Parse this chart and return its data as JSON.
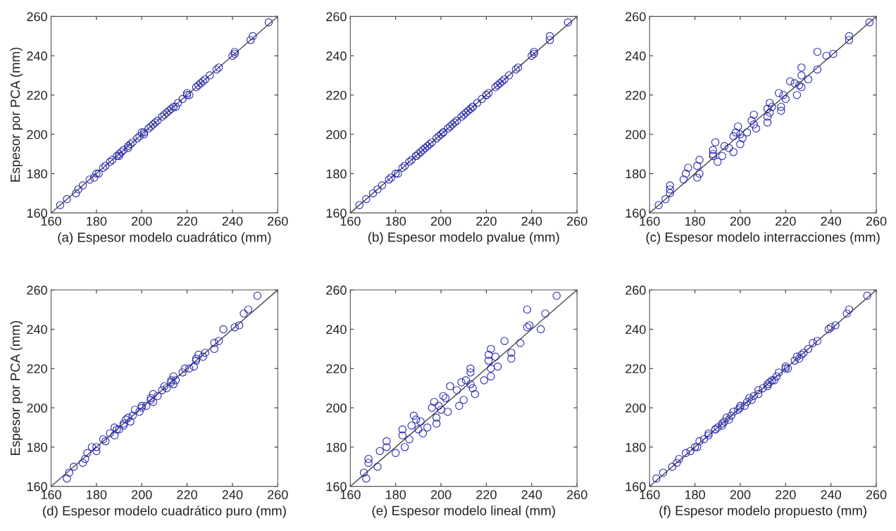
{
  "chart_data": [
    {
      "type": "scatter",
      "xlabel": "(a) Espesor modelo cuadrático (mm)",
      "ylabel": "Espesor por PCA (mm)",
      "xlim": [
        160,
        260
      ],
      "ylim": [
        160,
        260
      ],
      "xticks": [
        160,
        180,
        200,
        220,
        240,
        260
      ],
      "yticks": [
        160,
        180,
        200,
        220,
        240,
        260
      ],
      "grid": false,
      "series": [
        {
          "marker": "circle",
          "color": "#2b2bb0",
          "x": [
            164,
            167,
            171,
            172,
            174,
            177,
            179,
            180,
            181,
            183,
            184,
            186,
            187,
            189,
            190,
            190,
            191,
            192,
            194,
            194,
            195,
            196,
            198,
            199,
            201,
            201,
            200,
            203,
            204,
            205,
            206,
            207,
            209,
            210,
            211,
            212,
            213,
            214,
            215,
            216,
            218,
            220,
            221,
            220,
            224,
            225,
            226,
            227,
            228,
            230,
            233,
            234,
            240,
            241,
            241,
            248,
            249,
            256
          ],
          "values": [
            164,
            167,
            170,
            172,
            174,
            177,
            178,
            180,
            180,
            183,
            184,
            186,
            187,
            189,
            189,
            190,
            191,
            192,
            193,
            194,
            195,
            196,
            198,
            199,
            200,
            201,
            201,
            203,
            204,
            205,
            206,
            207,
            209,
            210,
            211,
            212,
            213,
            214,
            214,
            216,
            218,
            220,
            220,
            221,
            224,
            225,
            226,
            227,
            228,
            230,
            233,
            234,
            240,
            241,
            242,
            248,
            250,
            257
          ]
        },
        {
          "type": "line",
          "color": "#333333",
          "x": [
            160,
            260
          ],
          "values": [
            160,
            260
          ]
        }
      ]
    },
    {
      "type": "scatter",
      "xlabel": "(b) Espesor modelo pvalue (mm)",
      "xlim": [
        160,
        260
      ],
      "ylim": [
        160,
        260
      ],
      "xticks": [
        160,
        180,
        200,
        220,
        240,
        260
      ],
      "yticks": [
        160,
        180,
        200,
        220,
        240,
        260
      ],
      "grid": false,
      "series": [
        {
          "marker": "circle",
          "color": "#2b2bb0",
          "x": [
            164,
            167,
            170,
            172,
            174,
            177,
            178,
            180,
            181,
            183,
            184,
            186,
            187,
            189,
            189,
            190,
            191,
            192,
            193,
            194,
            195,
            196,
            198,
            199,
            200,
            201,
            201,
            203,
            204,
            205,
            206,
            207,
            209,
            210,
            211,
            212,
            213,
            214,
            214,
            216,
            218,
            220,
            220,
            221,
            224,
            225,
            226,
            227,
            228,
            230,
            233,
            234,
            240,
            241,
            241,
            248,
            248,
            256
          ],
          "values": [
            164,
            167,
            170,
            172,
            174,
            177,
            178,
            180,
            180,
            183,
            184,
            186,
            187,
            189,
            189,
            190,
            191,
            192,
            193,
            194,
            195,
            196,
            198,
            199,
            200,
            201,
            201,
            203,
            204,
            205,
            206,
            207,
            209,
            210,
            211,
            212,
            213,
            214,
            214,
            216,
            218,
            220,
            220,
            221,
            224,
            225,
            226,
            227,
            228,
            230,
            233,
            234,
            240,
            241,
            242,
            248,
            250,
            257
          ]
        },
        {
          "type": "line",
          "color": "#333333",
          "x": [
            160,
            260
          ],
          "values": [
            160,
            260
          ]
        }
      ]
    },
    {
      "type": "scatter",
      "xlabel": "(c) Espesor modelo interracciones (mm)",
      "xlim": [
        160,
        260
      ],
      "ylim": [
        160,
        260
      ],
      "xticks": [
        160,
        180,
        200,
        220,
        240,
        260
      ],
      "yticks": [
        160,
        180,
        200,
        220,
        240,
        260
      ],
      "grid": false,
      "series": [
        {
          "marker": "circle",
          "color": "#2b2bb0",
          "x": [
            164,
            167,
            169,
            169,
            169,
            175,
            181,
            176,
            182,
            177,
            181,
            190,
            182,
            188,
            192,
            188,
            197,
            188,
            195,
            193,
            200,
            189,
            201,
            197,
            200,
            203,
            198,
            207,
            199,
            206,
            212,
            205,
            212,
            206,
            213,
            218,
            212,
            214,
            218,
            213,
            220,
            219,
            225,
            217,
            227,
            226,
            224,
            222,
            230,
            227,
            234,
            227,
            238,
            241,
            234,
            248,
            248,
            257
          ],
          "values": [
            164,
            167,
            170,
            172,
            174,
            177,
            178,
            180,
            180,
            183,
            184,
            186,
            187,
            189,
            189,
            190,
            191,
            192,
            193,
            194,
            195,
            196,
            198,
            199,
            200,
            201,
            201,
            203,
            204,
            205,
            206,
            207,
            209,
            210,
            211,
            212,
            213,
            214,
            214,
            216,
            218,
            220,
            220,
            221,
            224,
            225,
            226,
            227,
            228,
            230,
            233,
            234,
            240,
            241,
            242,
            248,
            250,
            257
          ]
        },
        {
          "type": "line",
          "color": "#333333",
          "x": [
            160,
            260
          ],
          "values": [
            160,
            260
          ]
        }
      ]
    },
    {
      "type": "scatter",
      "xlabel": "(d) Espesor modelo cuadrático puro (mm)",
      "ylabel": "Espesor por PCA (mm)",
      "xlim": [
        160,
        260
      ],
      "ylim": [
        160,
        260
      ],
      "xticks": [
        160,
        180,
        200,
        220,
        240,
        260
      ],
      "yticks": [
        160,
        180,
        200,
        220,
        240,
        260
      ],
      "grid": false,
      "series": [
        {
          "marker": "circle",
          "color": "#2b2bb0",
          "x": [
            167,
            168,
            170,
            174,
            175,
            176,
            180,
            180,
            178,
            184,
            183,
            188,
            186,
            189,
            190,
            188,
            192,
            192,
            195,
            193,
            194,
            196,
            199,
            197,
            200,
            202,
            200,
            205,
            204,
            204,
            207,
            205,
            209,
            211,
            210,
            214,
            213,
            213,
            215,
            214,
            218,
            221,
            219,
            223,
            224,
            224,
            227,
            225,
            228,
            232,
            232,
            234,
            236,
            241,
            243,
            245,
            247,
            251
          ],
          "values": [
            164,
            167,
            170,
            172,
            174,
            177,
            178,
            180,
            180,
            183,
            184,
            186,
            187,
            189,
            189,
            190,
            191,
            192,
            193,
            194,
            195,
            196,
            198,
            199,
            200,
            201,
            201,
            203,
            204,
            205,
            206,
            207,
            209,
            210,
            211,
            212,
            213,
            214,
            214,
            216,
            218,
            220,
            220,
            221,
            224,
            225,
            226,
            227,
            228,
            230,
            233,
            234,
            240,
            241,
            242,
            248,
            250,
            257
          ]
        },
        {
          "type": "line",
          "color": "#333333",
          "x": [
            160,
            260
          ],
          "values": [
            160,
            260
          ]
        }
      ]
    },
    {
      "type": "scatter",
      "xlabel": "(e) Espesor modelo lineal (mm)",
      "xlim": [
        160,
        260
      ],
      "ylim": [
        160,
        260
      ],
      "xticks": [
        160,
        180,
        200,
        220,
        240,
        260
      ],
      "yticks": [
        160,
        180,
        200,
        220,
        240,
        260
      ],
      "grid": false,
      "series": [
        {
          "marker": "circle",
          "color": "#2b2bb0",
          "x": [
            167,
            166,
            172,
            168,
            168,
            180,
            173,
            176,
            184,
            176,
            186,
            183,
            192,
            183,
            190,
            194,
            187,
            198,
            191,
            189,
            198,
            188,
            203,
            200,
            196,
            208,
            199,
            197,
            210,
            202,
            201,
            215,
            207,
            214,
            204,
            213,
            209,
            219,
            211,
            222,
            213,
            222,
            213,
            225,
            221,
            231,
            224,
            221,
            231,
            222,
            235,
            228,
            244,
            238,
            239,
            246,
            238,
            251
          ],
          "values": [
            164,
            167,
            170,
            172,
            174,
            177,
            178,
            180,
            180,
            183,
            184,
            186,
            187,
            189,
            189,
            190,
            191,
            192,
            193,
            194,
            195,
            196,
            198,
            199,
            200,
            201,
            201,
            203,
            204,
            205,
            206,
            207,
            209,
            210,
            211,
            212,
            213,
            214,
            214,
            216,
            218,
            220,
            220,
            221,
            224,
            225,
            226,
            227,
            228,
            230,
            233,
            234,
            240,
            241,
            242,
            248,
            250,
            257
          ]
        },
        {
          "type": "line",
          "color": "#333333",
          "x": [
            160,
            260
          ],
          "values": [
            160,
            260
          ]
        }
      ]
    },
    {
      "type": "scatter",
      "xlabel": "(f) Espesor modelo propuesto (mm)",
      "xlim": [
        160,
        260
      ],
      "ylim": [
        160,
        260
      ],
      "xticks": [
        160,
        180,
        200,
        220,
        240,
        260
      ],
      "yticks": [
        160,
        180,
        200,
        220,
        240,
        260
      ],
      "grid": false,
      "series": [
        {
          "marker": "circle",
          "color": "#2b2bb0",
          "x": [
            163,
            166,
            170,
            172,
            173,
            176,
            178,
            180,
            181,
            182,
            184,
            186,
            186,
            189,
            189,
            190,
            192,
            192,
            193,
            195,
            194,
            196,
            197,
            199,
            200,
            202,
            200,
            203,
            205,
            204,
            206,
            208,
            208,
            210,
            212,
            212,
            213,
            214,
            215,
            216,
            217,
            220,
            221,
            220,
            224,
            226,
            225,
            227,
            228,
            230,
            232,
            234,
            239,
            240,
            242,
            247,
            248,
            256
          ],
          "values": [
            164,
            167,
            170,
            172,
            174,
            177,
            178,
            180,
            180,
            183,
            184,
            186,
            187,
            189,
            189,
            190,
            191,
            192,
            193,
            194,
            195,
            196,
            198,
            199,
            200,
            201,
            201,
            203,
            204,
            205,
            206,
            207,
            209,
            210,
            211,
            212,
            213,
            214,
            214,
            216,
            218,
            220,
            220,
            221,
            224,
            225,
            226,
            227,
            228,
            230,
            233,
            234,
            240,
            241,
            242,
            248,
            250,
            257
          ]
        },
        {
          "type": "line",
          "color": "#333333",
          "x": [
            160,
            260
          ],
          "values": [
            160,
            260
          ]
        }
      ]
    }
  ]
}
